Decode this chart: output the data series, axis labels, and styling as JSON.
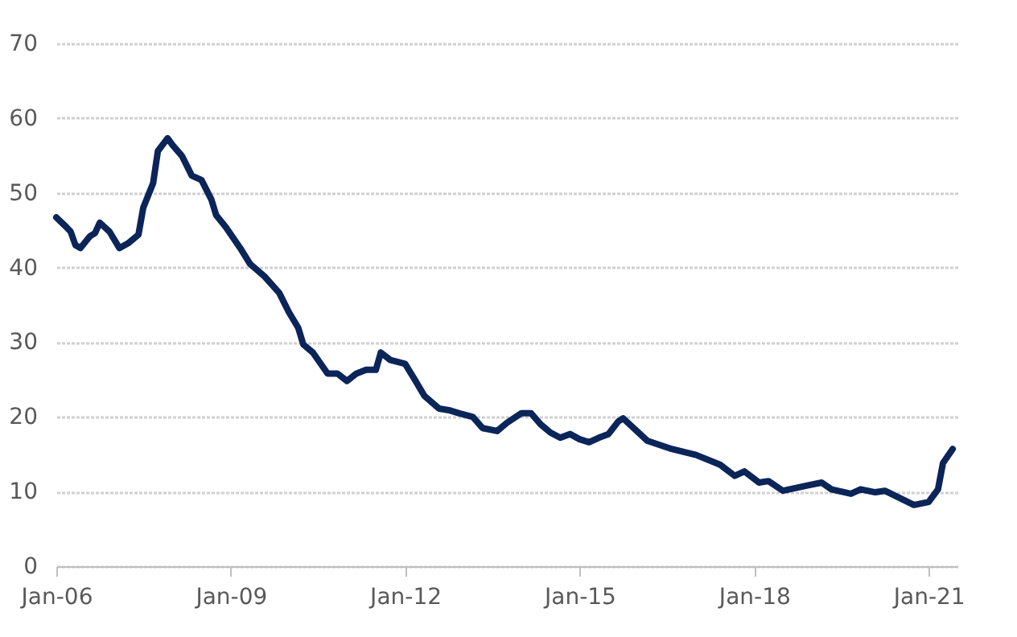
{
  "chart_data": {
    "type": "line",
    "x": [
      "2006-01",
      "2006-03",
      "2006-04",
      "2006-05",
      "2006-06",
      "2006-08",
      "2006-09",
      "2006-10",
      "2006-12",
      "2007-02",
      "2007-04",
      "2007-06",
      "2007-07",
      "2007-09",
      "2007-10",
      "2007-12",
      "2008-01",
      "2008-03",
      "2008-05",
      "2008-07",
      "2008-09",
      "2008-10",
      "2008-12",
      "2009-03",
      "2009-05",
      "2009-08",
      "2009-11",
      "2010-01",
      "2010-03",
      "2010-04",
      "2010-06",
      "2010-09",
      "2010-11",
      "2011-01",
      "2011-03",
      "2011-05",
      "2011-07",
      "2011-08",
      "2011-10",
      "2012-01",
      "2012-03",
      "2012-05",
      "2012-08",
      "2012-10",
      "2012-12",
      "2013-03",
      "2013-05",
      "2013-08",
      "2013-10",
      "2014-01",
      "2014-03",
      "2014-05",
      "2014-07",
      "2014-09",
      "2014-11",
      "2015-01",
      "2015-03",
      "2015-05",
      "2015-07",
      "2015-09",
      "2015-10",
      "2016-03",
      "2016-08",
      "2017-01",
      "2017-06",
      "2017-09",
      "2017-11",
      "2018-02",
      "2018-04",
      "2018-07",
      "2018-12",
      "2019-03",
      "2019-05",
      "2019-09",
      "2019-11",
      "2020-02",
      "2020-04",
      "2020-10",
      "2021-01",
      "2021-03",
      "2021-04",
      "2021-06"
    ],
    "series": [
      {
        "color": "#0b2559",
        "values": [
          46.7,
          45.5,
          44.8,
          43,
          42.6,
          44.2,
          44.6,
          46,
          44.8,
          42.6,
          43.3,
          44.4,
          48,
          51.3,
          55.6,
          57.3,
          56.4,
          54.9,
          52.3,
          51.7,
          49.1,
          47,
          45.4,
          42.6,
          40.5,
          38.8,
          36.6,
          34,
          31.9,
          29.7,
          28.6,
          25.8,
          25.8,
          24.8,
          25.8,
          26.3,
          26.3,
          28.6,
          27.6,
          27.1,
          25,
          22.8,
          21.1,
          20.9,
          20.5,
          20,
          18.5,
          18.1,
          19.2,
          20.5,
          20.5,
          19,
          17.9,
          17.2,
          17.7,
          17,
          16.6,
          17.2,
          17.7,
          19.4,
          19.8,
          16.8,
          15.7,
          14.9,
          13.6,
          12.1,
          12.7,
          11.2,
          11.4,
          10.1,
          10.8,
          11.2,
          10.3,
          9.7,
          10.3,
          9.9,
          10.1,
          8.2,
          8.6,
          10.3,
          13.8,
          15.7
        ]
      }
    ],
    "xlim": [
      "2006-01",
      "2021-07"
    ],
    "xticks": [
      {
        "value": "2006-01",
        "label": "Jan-06"
      },
      {
        "value": "2009-01",
        "label": "Jan-09"
      },
      {
        "value": "2012-01",
        "label": "Jan-12"
      },
      {
        "value": "2015-01",
        "label": "Jan-15"
      },
      {
        "value": "2018-01",
        "label": "Jan-18"
      },
      {
        "value": "2021-01",
        "label": "Jan-21"
      }
    ],
    "ylim": [
      0,
      70
    ],
    "yticks": [
      0,
      10,
      20,
      30,
      40,
      50,
      60,
      70
    ],
    "grid": "y",
    "legend": false,
    "marker": "none",
    "line_style": "solid"
  }
}
